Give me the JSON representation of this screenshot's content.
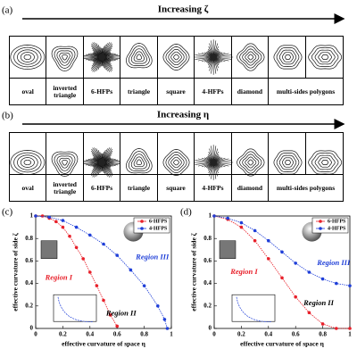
{
  "panels": [
    {
      "label": "(a)",
      "arrow_label": "Increasing ζ",
      "shapes": [
        "oval",
        "inverted triangle",
        "6-HFPs",
        "triangle",
        "square",
        "4-HFPs",
        "diamond",
        "multi-sides polygons"
      ]
    },
    {
      "label": "(b)",
      "arrow_label": "Increasing η",
      "shapes": [
        "oval",
        "inverted triangle",
        "6-HFPs",
        "triangle",
        "square",
        "4-HFPs",
        "diamond",
        "multi-sides polygons"
      ]
    }
  ],
  "chart_data": [
    {
      "type": "line",
      "panel_label": "(c)",
      "x_label": "effective curvature of space η",
      "y_label": "effective curvature of side ζ",
      "xlim": [
        0,
        1
      ],
      "ylim": [
        0,
        1
      ],
      "xticks": [
        0,
        0.2,
        0.4,
        0.6,
        0.8,
        1
      ],
      "yticks": [
        0,
        0.2,
        0.4,
        0.6,
        0.8,
        1
      ],
      "legend": "upper right",
      "series": [
        {
          "name": "6-HFPS",
          "color": "#e8202a",
          "x": [
            0,
            0.05,
            0.1,
            0.15,
            0.2,
            0.25,
            0.3,
            0.35,
            0.4,
            0.45,
            0.5,
            0.55,
            0.6
          ],
          "values": [
            1,
            1,
            0.98,
            0.95,
            0.9,
            0.82,
            0.72,
            0.62,
            0.5,
            0.38,
            0.25,
            0.12,
            0.02
          ]
        },
        {
          "name": "4-HFPS",
          "color": "#1f3fd8",
          "x": [
            0,
            0.1,
            0.2,
            0.3,
            0.4,
            0.5,
            0.6,
            0.7,
            0.8,
            0.9,
            0.95,
            0.97
          ],
          "values": [
            1,
            0.99,
            0.96,
            0.9,
            0.83,
            0.75,
            0.65,
            0.52,
            0.38,
            0.2,
            0.08,
            0
          ]
        }
      ],
      "annotations": [
        {
          "text": "Region I",
          "color": "#e8202a"
        },
        {
          "text": "Region II",
          "color": "#000000"
        },
        {
          "text": "Region III",
          "color": "#1f3fd8"
        }
      ]
    },
    {
      "type": "line",
      "panel_label": "(d)",
      "x_label": "effective curvature of space η",
      "y_label": "effective curvature of side ζ",
      "xlim": [
        0,
        1
      ],
      "ylim": [
        0,
        1
      ],
      "xticks": [
        0,
        0.2,
        0.4,
        0.6,
        0.8,
        1
      ],
      "yticks": [
        0,
        0.2,
        0.4,
        0.6,
        0.8,
        1
      ],
      "legend": "upper right",
      "series": [
        {
          "name": "6-HFPS",
          "color": "#e8202a",
          "x": [
            0,
            0.1,
            0.2,
            0.3,
            0.4,
            0.5,
            0.6,
            0.7,
            0.8,
            0.9,
            1
          ],
          "values": [
            1,
            0.97,
            0.9,
            0.78,
            0.62,
            0.45,
            0.28,
            0.14,
            0.04,
            0,
            0
          ]
        },
        {
          "name": "4-HFPS",
          "color": "#1f3fd8",
          "x": [
            0,
            0.1,
            0.2,
            0.3,
            0.4,
            0.5,
            0.6,
            0.7,
            0.8,
            0.9,
            1
          ],
          "values": [
            1,
            0.98,
            0.94,
            0.87,
            0.78,
            0.68,
            0.58,
            0.5,
            0.44,
            0.4,
            0.38
          ]
        }
      ],
      "annotations": [
        {
          "text": "Region I",
          "color": "#e8202a"
        },
        {
          "text": "Region II",
          "color": "#000000"
        },
        {
          "text": "Region III",
          "color": "#1f3fd8"
        }
      ]
    }
  ]
}
